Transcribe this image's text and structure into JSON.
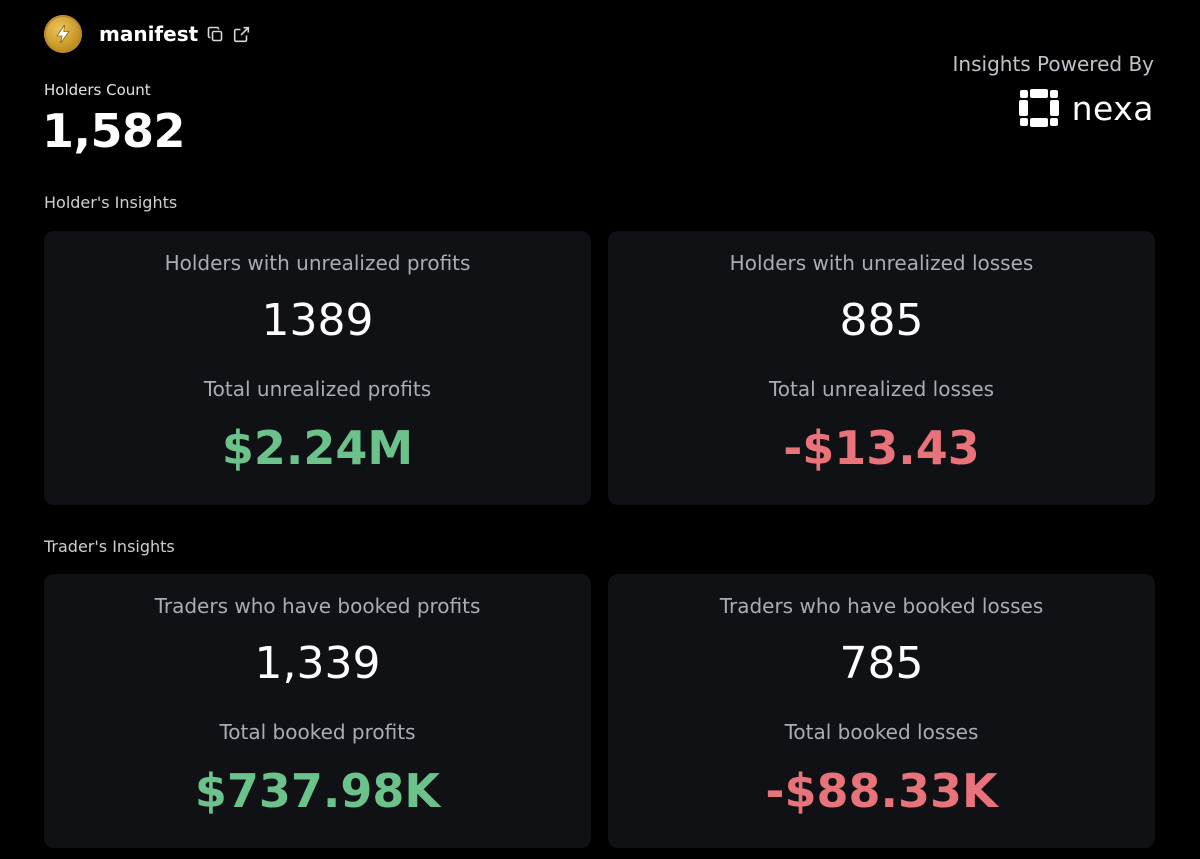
{
  "token": {
    "name": "manifest",
    "logo_icon": "token-coin-icon",
    "copy_icon": "copy-icon",
    "external_icon": "external-link-icon"
  },
  "holders": {
    "label": "Holders Count",
    "value": "1,582"
  },
  "powered_by": {
    "label": "Insights Powered By",
    "brand": "nexa"
  },
  "holders_insights": {
    "title": "Holder's Insights",
    "profits": {
      "label": "Holders with unrealized profits",
      "count": "1389",
      "total_label": "Total unrealized profits",
      "total": "$2.24M"
    },
    "losses": {
      "label": "Holders with unrealized losses",
      "count": "885",
      "total_label": "Total unrealized losses",
      "total": "-$13.43"
    }
  },
  "traders_insights": {
    "title": "Trader's Insights",
    "profits": {
      "label": "Traders who have booked profits",
      "count": "1,339",
      "total_label": "Total booked profits",
      "total": "$737.98K"
    },
    "losses": {
      "label": "Traders who have booked losses",
      "count": "785",
      "total_label": "Total booked losses",
      "total": "-$88.33K"
    }
  },
  "colors": {
    "background": "#000000",
    "card": "#101114",
    "positive": "#6cc28b",
    "negative": "#e8737a"
  }
}
